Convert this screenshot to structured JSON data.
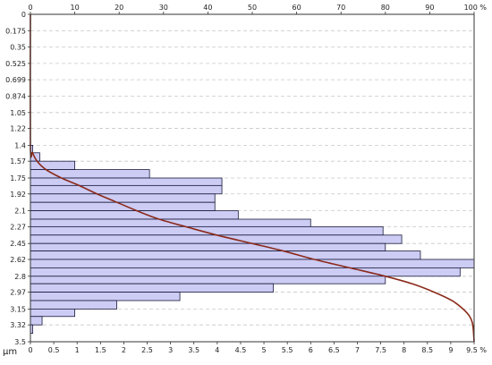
{
  "chart_data": {
    "type": "bar",
    "orientation": "horizontal",
    "y_tick_labels": [
      "0",
      "0.175",
      "0.35",
      "0.525",
      "0.699",
      "0.874",
      "1.05",
      "1.22",
      "1.4",
      "1.57",
      "1.75",
      "1.92",
      "2.1",
      "2.27",
      "2.45",
      "2.62",
      "2.8",
      "2.97",
      "3.15",
      "3.32",
      "3.5"
    ],
    "y_unit": "µm",
    "top_axis": {
      "range": [
        0,
        100
      ],
      "ticks": [
        "0",
        "10",
        "20",
        "30",
        "40",
        "50",
        "60",
        "70",
        "80",
        "90",
        "100 %"
      ]
    },
    "bottom_axis": {
      "range": [
        0,
        9.5
      ],
      "ticks": [
        "0",
        "0.5",
        "1",
        "1.5",
        "2",
        "2.5",
        "3",
        "3.5",
        "4",
        "4.5",
        "5",
        "5.5",
        "6",
        "6.5",
        "7",
        "7.5",
        "8",
        "8.5",
        "9",
        "9.5 %"
      ]
    },
    "bars": [
      {
        "y_from": 1.4,
        "y_to": 1.48,
        "value": 0.05
      },
      {
        "y_from": 1.48,
        "y_to": 1.57,
        "value": 0.2
      },
      {
        "y_from": 1.57,
        "y_to": 1.66,
        "value": 0.95
      },
      {
        "y_from": 1.66,
        "y_to": 1.75,
        "value": 2.55
      },
      {
        "y_from": 1.75,
        "y_to": 1.83,
        "value": 4.1
      },
      {
        "y_from": 1.83,
        "y_to": 1.92,
        "value": 4.1
      },
      {
        "y_from": 1.92,
        "y_to": 2.01,
        "value": 3.95
      },
      {
        "y_from": 2.01,
        "y_to": 2.1,
        "value": 3.95
      },
      {
        "y_from": 2.1,
        "y_to": 2.19,
        "value": 4.45
      },
      {
        "y_from": 2.19,
        "y_to": 2.27,
        "value": 6.0
      },
      {
        "y_from": 2.27,
        "y_to": 2.36,
        "value": 7.55
      },
      {
        "y_from": 2.36,
        "y_to": 2.45,
        "value": 7.95
      },
      {
        "y_from": 2.45,
        "y_to": 2.53,
        "value": 7.6
      },
      {
        "y_from": 2.53,
        "y_to": 2.62,
        "value": 8.35
      },
      {
        "y_from": 2.62,
        "y_to": 2.71,
        "value": 9.5
      },
      {
        "y_from": 2.71,
        "y_to": 2.8,
        "value": 9.2
      },
      {
        "y_from": 2.8,
        "y_to": 2.88,
        "value": 7.6
      },
      {
        "y_from": 2.88,
        "y_to": 2.97,
        "value": 5.2
      },
      {
        "y_from": 2.97,
        "y_to": 3.06,
        "value": 3.2
      },
      {
        "y_from": 3.06,
        "y_to": 3.15,
        "value": 1.85
      },
      {
        "y_from": 3.15,
        "y_to": 3.23,
        "value": 0.95
      },
      {
        "y_from": 3.23,
        "y_to": 3.32,
        "value": 0.25
      },
      {
        "y_from": 3.32,
        "y_to": 3.41,
        "value": 0.05
      }
    ],
    "cumulative_curve": {
      "axis": "top",
      "points": [
        [
          0,
          0
        ],
        [
          1.4,
          0
        ],
        [
          1.48,
          0.5
        ],
        [
          1.57,
          1.5
        ],
        [
          1.66,
          3.5
        ],
        [
          1.75,
          7
        ],
        [
          1.83,
          11
        ],
        [
          1.92,
          15
        ],
        [
          2.01,
          19.5
        ],
        [
          2.1,
          24
        ],
        [
          2.19,
          29
        ],
        [
          2.27,
          35
        ],
        [
          2.36,
          42
        ],
        [
          2.45,
          50
        ],
        [
          2.53,
          57
        ],
        [
          2.62,
          64
        ],
        [
          2.71,
          72
        ],
        [
          2.8,
          80
        ],
        [
          2.88,
          86
        ],
        [
          2.97,
          91
        ],
        [
          3.06,
          95
        ],
        [
          3.15,
          97.5
        ],
        [
          3.23,
          99
        ],
        [
          3.32,
          99.7
        ],
        [
          3.5,
          100
        ]
      ]
    },
    "grid": true,
    "colors": {
      "bar_fill": "#ccccf5",
      "bar_stroke": "#1a1a3a",
      "curve": "#8b2a1a",
      "grid": "#c8c8c8"
    }
  }
}
